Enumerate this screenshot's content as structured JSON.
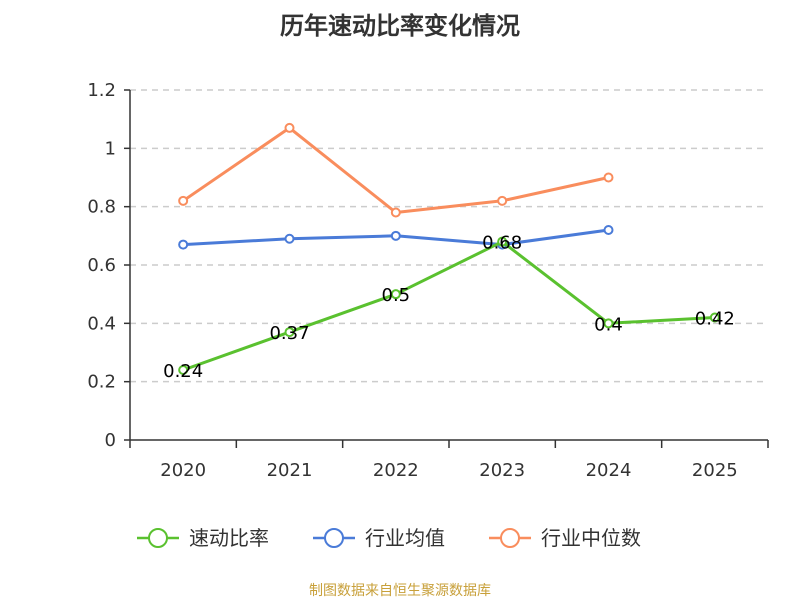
{
  "chart_data": {
    "type": "line",
    "title": "历年速动比率变化情况",
    "categories": [
      "2020",
      "2021",
      "2022",
      "2023",
      "2024",
      "2025"
    ],
    "ylim": [
      0,
      1.2
    ],
    "yticks": [
      "0",
      "0.2",
      "0.4",
      "0.6",
      "0.8",
      "1",
      "1.2"
    ],
    "grid": true,
    "legend_position": "bottom",
    "series": [
      {
        "name": "速动比率",
        "color": "#5ac12f",
        "values": [
          0.24,
          0.37,
          0.5,
          0.68,
          0.4,
          0.42
        ],
        "labels": [
          "0.24",
          "0.37",
          "0.5",
          "0.68",
          "0.4",
          "0.42"
        ]
      },
      {
        "name": "行业均值",
        "color": "#4a7bd8",
        "values": [
          0.67,
          0.69,
          0.7,
          0.67,
          0.72,
          null
        ]
      },
      {
        "name": "行业中位数",
        "color": "#f98d5d",
        "values": [
          0.82,
          1.07,
          0.78,
          0.82,
          0.9,
          null
        ]
      }
    ]
  },
  "source": {
    "text": "制图数据来自恒生聚源数据库",
    "color": "#c8a03a"
  }
}
